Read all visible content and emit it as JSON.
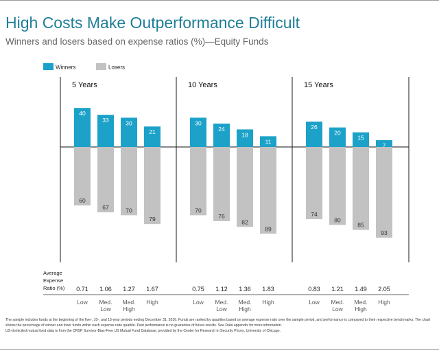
{
  "title": "High Costs Make Outperformance Difficult",
  "subtitle": "Winners and losers based on expense ratios (%)—Equity Funds",
  "chart_data": {
    "type": "bar",
    "legend": [
      {
        "name": "Winners",
        "color": "#1ca2c9"
      },
      {
        "name": "Losers",
        "color": "#c2c2c2"
      }
    ],
    "legend_position": "top-left",
    "categories": [
      "Low",
      "Med. Low",
      "Med. High",
      "High"
    ],
    "category_lines": [
      [
        "Low"
      ],
      [
        "Med.",
        "Low"
      ],
      [
        "Med.",
        "High"
      ],
      [
        "High"
      ]
    ],
    "panels": [
      {
        "label": "5 Years",
        "winners": [
          40,
          33,
          30,
          21
        ],
        "losers": [
          60,
          67,
          70,
          79
        ],
        "expense_ratios": [
          "0.71",
          "1.06",
          "1.27",
          "1.67"
        ]
      },
      {
        "label": "10 Years",
        "winners": [
          30,
          24,
          18,
          11
        ],
        "losers": [
          70,
          76,
          82,
          89
        ],
        "expense_ratios": [
          "0.75",
          "1.12",
          "1.36",
          "1.83"
        ]
      },
      {
        "label": "15 Years",
        "winners": [
          26,
          20,
          15,
          7
        ],
        "losers": [
          74,
          80,
          85,
          93
        ],
        "expense_ratios": [
          "0.83",
          "1.21",
          "1.49",
          "2.05"
        ]
      }
    ],
    "row_label_lines": [
      "Average",
      "Expense",
      "Ratio (%)"
    ],
    "colors": {
      "winners": "#1ca2c9",
      "losers": "#c2c2c2"
    }
  },
  "footnotes": [
    "The sample includes funds at the beginning of the five-, 10-, and 15-year periods ending December 31, 2016. Funds are ranked by quartiles based on average expense ratio over the sample period, and performance is compared to their respective benchmarks. The chart shows the percentage of winner and loser funds within each expense ratio quartile. Past performance is no guarantee of future results. See Data appendix for more information.",
    "US-domiciled mutual fund data is from the CRSP Survivor-Bias-Free US Mutual Fund Database, provided by the Center for Research in Security Prices, University of Chicago."
  ]
}
